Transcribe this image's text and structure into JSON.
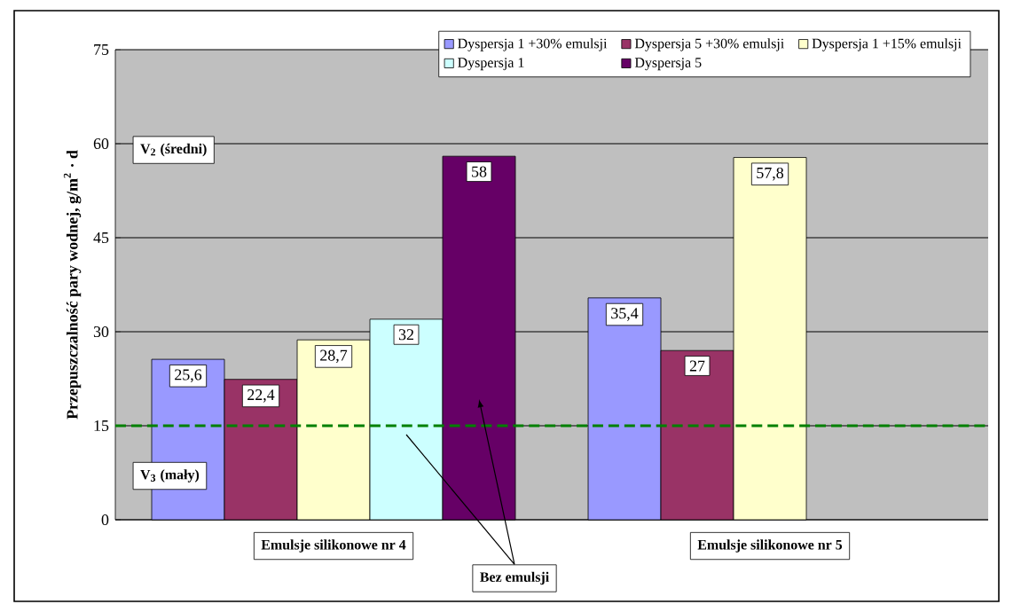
{
  "chart_data": {
    "type": "bar",
    "ylabel": "Przepuszczalność pary wodnej, g/m$^{2}$ · d",
    "categories": [
      "Emulsje silikonowe nr 4",
      "Emulsje silikonowe nr 5"
    ],
    "series": [
      {
        "name": "Dyspersja 1 +30% emulsji",
        "color": "#9999ff",
        "values": [
          25.6,
          35.4
        ],
        "value_labels": [
          "25,6",
          "35,4"
        ]
      },
      {
        "name": "Dyspersja 5 +30% emulsji",
        "color": "#993366",
        "values": [
          22.4,
          27
        ],
        "value_labels": [
          "22,4",
          "27"
        ]
      },
      {
        "name": "Dyspersja 1 +15% emulsji",
        "color": "#ffffcc",
        "values": [
          28.7,
          57.8
        ],
        "value_labels": [
          "28,7",
          "57,8"
        ]
      },
      {
        "name": "Dyspersja 1",
        "color": "#ccffff",
        "values": [
          32,
          null
        ],
        "value_labels": [
          "32",
          null
        ]
      },
      {
        "name": "Dyspersja 5",
        "color": "#660066",
        "values": [
          58,
          null
        ],
        "value_labels": [
          "58",
          null
        ]
      }
    ],
    "ylim": [
      0,
      75
    ],
    "yticks": [
      0,
      15,
      30,
      45,
      60,
      75
    ],
    "grid": "y",
    "legend": "top right",
    "ref_lines": [
      {
        "axis": "y",
        "value": 15,
        "color": "#008000",
        "line_style": "dashed"
      }
    ],
    "annotations": [
      "V$_{2}$ (średni)",
      "V$_{3}$ (mały)",
      "Bez emulsji"
    ]
  }
}
